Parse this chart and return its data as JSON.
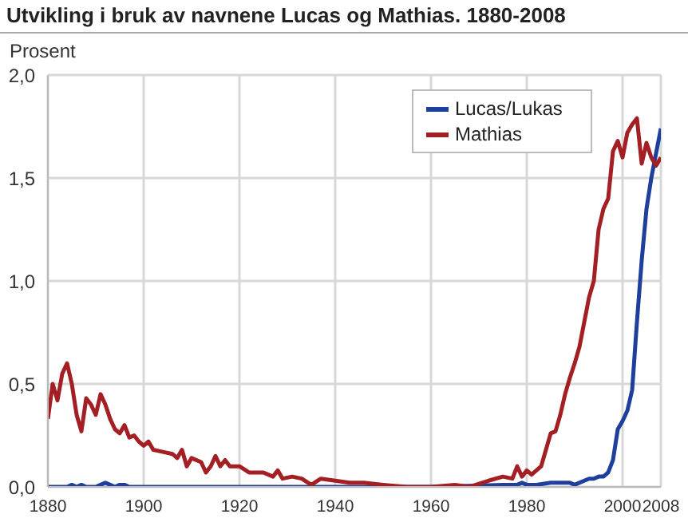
{
  "chart_data": {
    "type": "line",
    "title": "Utvikling i bruk av navnene Lucas og Mathias. 1880-2008",
    "ylabel": "Prosent",
    "xlim": [
      1880,
      2008
    ],
    "xticks": [
      1880,
      1900,
      1920,
      1940,
      1960,
      1980,
      2000,
      2008
    ],
    "ylim": [
      0,
      2
    ],
    "yticks": [
      {
        "value": 0,
        "label": "0,0"
      },
      {
        "value": 0.5,
        "label": "0,5"
      },
      {
        "value": 1,
        "label": "1,0"
      },
      {
        "value": 1.5,
        "label": "1,5"
      },
      {
        "value": 2,
        "label": "2,0"
      }
    ],
    "grid": true,
    "legend": "top right",
    "marker": "none",
    "line_style": "solid",
    "series": [
      {
        "name": "Lucas/Lukas",
        "color": "#1f3f9c",
        "x": [
          1880,
          1884,
          1885,
          1886,
          1887,
          1888,
          1890,
          1891,
          1892,
          1893,
          1894,
          1895,
          1896,
          1897,
          1930,
          1960,
          1975,
          1978,
          1979,
          1980,
          1982,
          1985,
          1988,
          1989,
          1990,
          1992,
          1993,
          1994,
          1995,
          1996,
          1997,
          1998,
          1999,
          2000,
          2001,
          2002,
          2003,
          2004,
          2005,
          2006,
          2007,
          2008
        ],
        "values": [
          0,
          0,
          0.01,
          0,
          0.01,
          0,
          0,
          0.01,
          0.02,
          0.01,
          0,
          0.01,
          0.01,
          0,
          0,
          0,
          0.01,
          0.01,
          0.02,
          0.01,
          0.01,
          0.02,
          0.02,
          0.02,
          0.01,
          0.03,
          0.04,
          0.04,
          0.05,
          0.05,
          0.07,
          0.13,
          0.28,
          0.32,
          0.37,
          0.47,
          0.8,
          1.1,
          1.35,
          1.5,
          1.62,
          1.74
        ]
      },
      {
        "name": "Mathias",
        "color": "#a31f24",
        "x": [
          1880,
          1881,
          1882,
          1883,
          1884,
          1885,
          1886,
          1887,
          1888,
          1889,
          1890,
          1891,
          1892,
          1893,
          1894,
          1895,
          1896,
          1897,
          1898,
          1899,
          1900,
          1901,
          1902,
          1904,
          1906,
          1907,
          1908,
          1909,
          1910,
          1912,
          1913,
          1914,
          1915,
          1916,
          1917,
          1918,
          1920,
          1922,
          1925,
          1927,
          1928,
          1929,
          1931,
          1933,
          1935,
          1937,
          1940,
          1943,
          1946,
          1950,
          1955,
          1960,
          1965,
          1968,
          1972,
          1975,
          1977,
          1978,
          1979,
          1980,
          1981,
          1982,
          1983,
          1984,
          1985,
          1986,
          1987,
          1988,
          1989,
          1990,
          1991,
          1992,
          1993,
          1994,
          1995,
          1996,
          1997,
          1998,
          1999,
          2000,
          2001,
          2002,
          2003,
          2004,
          2005,
          2006,
          2007,
          2008
        ],
        "values": [
          0.33,
          0.5,
          0.42,
          0.55,
          0.6,
          0.5,
          0.35,
          0.27,
          0.43,
          0.4,
          0.35,
          0.45,
          0.4,
          0.33,
          0.28,
          0.26,
          0.3,
          0.24,
          0.25,
          0.22,
          0.2,
          0.22,
          0.18,
          0.17,
          0.16,
          0.14,
          0.18,
          0.1,
          0.14,
          0.12,
          0.07,
          0.1,
          0.15,
          0.1,
          0.13,
          0.1,
          0.1,
          0.07,
          0.07,
          0.05,
          0.08,
          0.04,
          0.05,
          0.04,
          0.01,
          0.04,
          0.03,
          0.02,
          0.02,
          0.01,
          0,
          0,
          0.01,
          0,
          0.03,
          0.05,
          0.04,
          0.1,
          0.05,
          0.08,
          0.06,
          0.08,
          0.1,
          0.18,
          0.26,
          0.27,
          0.35,
          0.45,
          0.53,
          0.6,
          0.68,
          0.8,
          0.92,
          1.0,
          1.25,
          1.35,
          1.4,
          1.63,
          1.68,
          1.6,
          1.72,
          1.76,
          1.79,
          1.57,
          1.67,
          1.6,
          1.56,
          1.6
        ]
      }
    ]
  }
}
